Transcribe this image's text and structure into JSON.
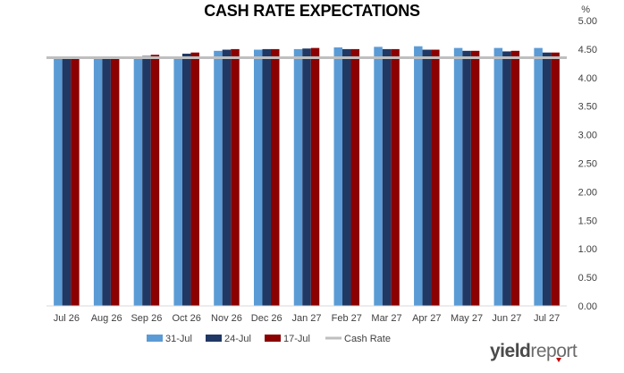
{
  "chart_data": {
    "type": "bar",
    "title": "CASH RATE EXPECTATIONS",
    "y_unit_label": "%",
    "categories": [
      "Jul 26",
      "Aug 26",
      "Sep 26",
      "Oct 26",
      "Nov 26",
      "Dec 26",
      "Jan 27",
      "Feb 27",
      "Mar 27",
      "Apr 27",
      "May 27",
      "Jun 27",
      "Jul 27"
    ],
    "series": [
      {
        "name": "31-Jul",
        "color": "#5b9bd5",
        "values": [
          4.35,
          4.34,
          4.35,
          4.36,
          4.47,
          4.49,
          4.5,
          4.53,
          4.54,
          4.55,
          4.52,
          4.52,
          4.52
        ]
      },
      {
        "name": "24-Jul",
        "color": "#1f3864",
        "values": [
          4.34,
          4.34,
          4.38,
          4.42,
          4.49,
          4.5,
          4.51,
          4.5,
          4.5,
          4.49,
          4.47,
          4.46,
          4.44
        ]
      },
      {
        "name": "17-Jul",
        "color": "#8b0000",
        "values": [
          4.34,
          4.34,
          4.4,
          4.44,
          4.5,
          4.5,
          4.52,
          4.5,
          4.5,
          4.49,
          4.47,
          4.47,
          4.44
        ]
      }
    ],
    "reference_line": {
      "name": "Cash Rate",
      "color": "#bfbfbf",
      "value": 4.35
    },
    "ylim": [
      0,
      5
    ],
    "yticks": [
      "0.00",
      "0.50",
      "1.00",
      "1.50",
      "2.00",
      "2.50",
      "3.00",
      "3.50",
      "4.00",
      "4.50",
      "5.00"
    ],
    "y_axis_position": "right",
    "grid": false,
    "legend_position": "bottom"
  },
  "brand": {
    "prefix": "yield",
    "suffix": "report"
  }
}
